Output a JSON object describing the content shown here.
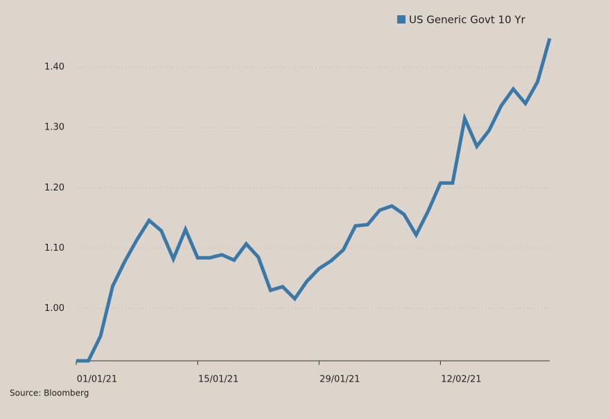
{
  "chart_data": {
    "type": "line",
    "categories": [
      "01/01/21",
      null,
      null,
      null,
      null,
      null,
      null,
      null,
      null,
      null,
      "15/01/21",
      null,
      null,
      null,
      null,
      null,
      null,
      null,
      null,
      null,
      "29/01/21",
      null,
      null,
      null,
      null,
      null,
      null,
      null,
      null,
      null,
      "12/02/21",
      null,
      null,
      null,
      null,
      null,
      null,
      null,
      null,
      null
    ],
    "series": [
      {
        "name": "US Generic Govt 10 Yr",
        "color": "#3a78a8",
        "values": [
          0.913,
          0.913,
          0.954,
          1.037,
          1.078,
          1.114,
          1.146,
          1.129,
          1.082,
          1.131,
          1.084,
          1.084,
          1.089,
          1.08,
          1.107,
          1.085,
          1.03,
          1.036,
          1.016,
          1.045,
          1.066,
          1.079,
          1.097,
          1.137,
          1.139,
          1.163,
          1.17,
          1.156,
          1.122,
          1.162,
          1.208,
          1.208,
          1.315,
          1.269,
          1.295,
          1.336,
          1.364,
          1.34,
          1.376,
          1.448
        ]
      }
    ],
    "ylim": [
      0.913,
      1.46
    ],
    "yticks": [
      {
        "value": 1.0,
        "label": "1.00"
      },
      {
        "value": 1.1,
        "label": "1.10"
      },
      {
        "value": 1.2,
        "label": "1.20"
      },
      {
        "value": 1.3,
        "label": "1.30"
      },
      {
        "value": 1.4,
        "label": "1.40"
      }
    ],
    "grid": true,
    "legend": "top-right",
    "source": "Source: Bloomberg"
  }
}
